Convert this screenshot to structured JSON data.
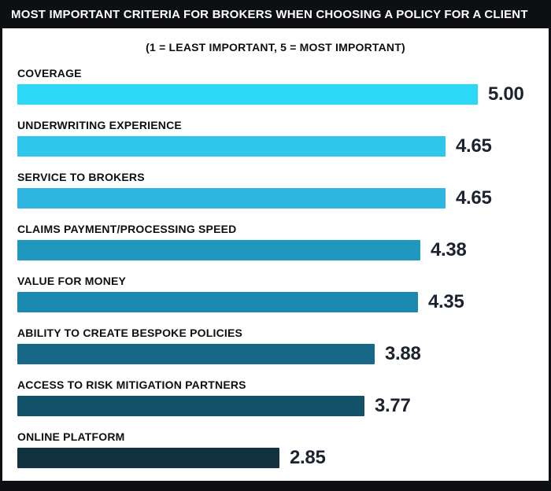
{
  "header": {
    "title": "MOST IMPORTANT CRITERIA FOR BROKERS WHEN CHOOSING A POLICY FOR A CLIENT",
    "subtitle": "(1 = LEAST IMPORTANT, 5 = MOST IMPORTANT)"
  },
  "chart_data": {
    "type": "bar",
    "orientation": "horizontal",
    "title": "MOST IMPORTANT CRITERIA FOR BROKERS WHEN CHOOSING A POLICY FOR A CLIENT",
    "subtitle": "(1 = LEAST IMPORTANT, 5 = MOST IMPORTANT)",
    "xlabel": "",
    "ylabel": "",
    "xlim": [
      0,
      5
    ],
    "grid": false,
    "legend": "none",
    "categories": [
      "COVERAGE",
      "UNDERWRITING EXPERIENCE",
      "SERVICE TO BROKERS",
      "CLAIMS PAYMENT/PROCESSING SPEED",
      "VALUE FOR MONEY",
      "ABILITY TO CREATE BESPOKE POLICIES",
      "ACCESS TO RISK MITIGATION PARTNERS",
      "ONLINE PLATFORM"
    ],
    "values": [
      5.0,
      4.65,
      4.65,
      4.38,
      4.35,
      3.88,
      3.77,
      2.85
    ],
    "value_labels": [
      "5.00",
      "4.65",
      "4.65",
      "4.38",
      "4.35",
      "3.88",
      "3.77",
      "2.85"
    ],
    "bar_colors": [
      "#2bd9f6",
      "#30c7ec",
      "#2eb5e0",
      "#1f97be",
      "#1b89af",
      "#166886",
      "#115169",
      "#10333f"
    ]
  },
  "colors": {
    "frame": "#0d0f12",
    "background": "#ffffff",
    "title_text": "#ffffff",
    "label_text": "#0d0f12",
    "value_text": "#1b2230"
  }
}
